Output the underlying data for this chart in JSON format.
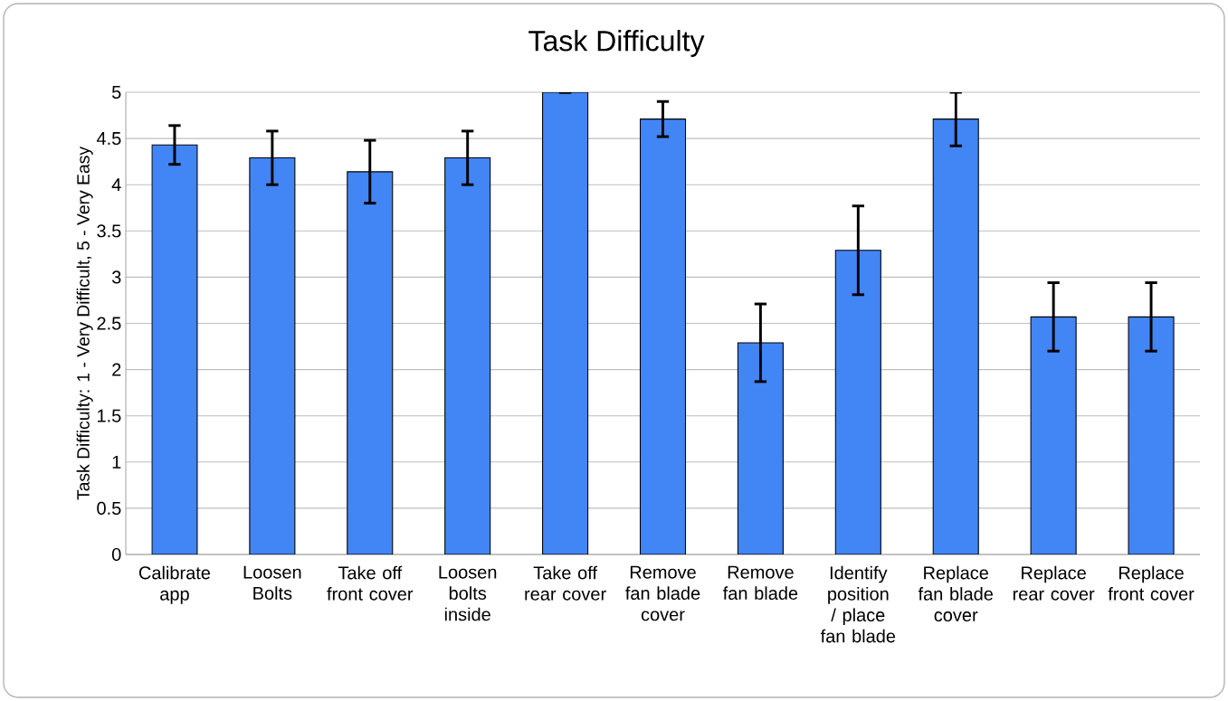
{
  "chart_data": {
    "type": "bar",
    "title": "Task Difficulty",
    "ylabel": "Task Difficulty: 1 - Very Difficult, 5 - Very Easy",
    "categories": [
      "Calibrate app",
      "Loosen Bolts",
      "Take off front cover",
      "Loosen bolts inside",
      "Take off rear cover",
      "Remove fan blade cover",
      "Remove fan blade",
      "Identify position / place fan blade",
      "Replace fan blade cover",
      "Replace rear cover",
      "Replace front cover"
    ],
    "values": [
      4.43,
      4.29,
      4.14,
      4.29,
      5,
      4.71,
      2.29,
      3.29,
      4.71,
      2.57,
      2.57
    ],
    "errors": [
      0.21,
      0.29,
      0.34,
      0.29,
      0,
      0.19,
      0.42,
      0.48,
      0.29,
      0.37,
      0.37
    ],
    "color": "#4285f4",
    "ylim": [
      0,
      5
    ],
    "yticks": [
      0,
      0.5,
      1,
      1.5,
      2,
      2.5,
      3,
      3.5,
      4,
      4.5,
      5
    ],
    "grid": "y"
  }
}
